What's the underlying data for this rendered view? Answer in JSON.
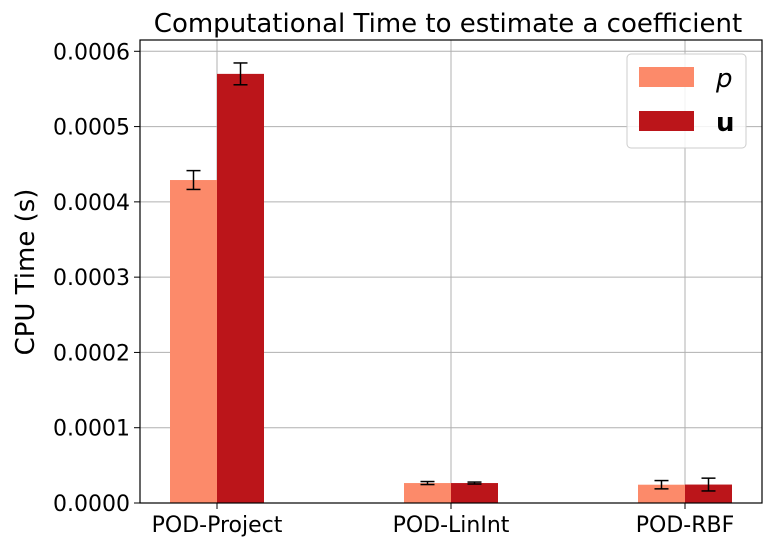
{
  "chart_data": {
    "type": "bar",
    "title": "Computational Time to estimate a coefficient",
    "xlabel": "",
    "ylabel": "CPU Time (s)",
    "categories": [
      "POD-Project",
      "POD-LinInt",
      "POD-RBF"
    ],
    "series": [
      {
        "name": "p",
        "color": "#fc8a6a",
        "values": [
          0.000429,
          2.65e-05,
          2.43e-05
        ],
        "errors": [
          1.25e-05,
          2e-06,
          5.5e-06
        ]
      },
      {
        "name": "u",
        "color": "#bb151a",
        "values": [
          0.00057,
          2.65e-05,
          2.45e-05
        ],
        "errors": [
          1.45e-05,
          1.3e-06,
          8.5e-06
        ]
      }
    ],
    "ylim": [
      0,
      0.000615
    ],
    "yticks": [
      "0.0000",
      "0.0001",
      "0.0002",
      "0.0003",
      "0.0004",
      "0.0005",
      "0.0006"
    ],
    "grid": true,
    "legend_position": "top-right"
  }
}
